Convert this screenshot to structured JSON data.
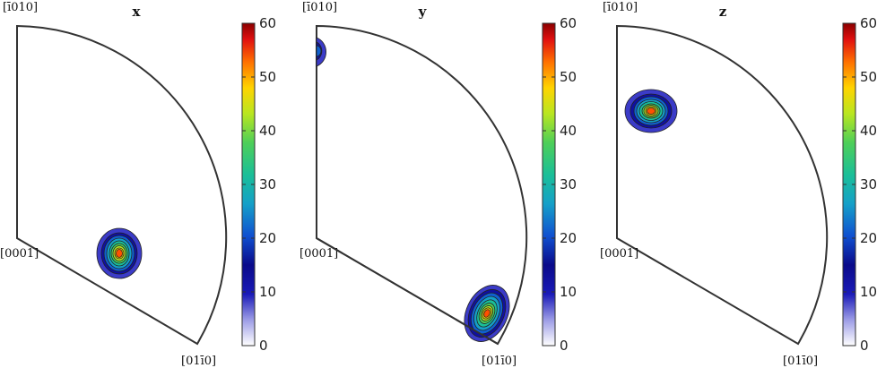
{
  "figure": {
    "panels": [
      {
        "title": "x",
        "corner_labels": {
          "top": "[ī010]",
          "left": "[0001]",
          "bottom": "[01ī0]"
        }
      },
      {
        "title": "y",
        "corner_labels": {
          "top": "[ī010]",
          "left": "[0001]",
          "bottom": "[01ī0]"
        }
      },
      {
        "title": "z",
        "corner_labels": {
          "top": "[ī010]",
          "left": "[0001]",
          "bottom": "[01ī0]"
        }
      }
    ],
    "colorbar": {
      "ticks": [
        "0",
        "10",
        "20",
        "30",
        "40",
        "50",
        "60"
      ],
      "colormap": [
        "#ffffff",
        "#9c9ce6",
        "#1a1ab8",
        "#0a0a8a",
        "#1050d0",
        "#15a0c8",
        "#1abf98",
        "#4ecf58",
        "#b9e620",
        "#ffd400",
        "#ff7000",
        "#e01010",
        "#8a0000"
      ]
    }
  },
  "chart_data": {
    "type": "heatmap",
    "description_kind": "inverse pole figure density contours",
    "colorbar_range": [
      0,
      60
    ],
    "panels": [
      {
        "title": "x",
        "peak_value": 60,
        "peak_position": "center-bottom region"
      },
      {
        "title": "y",
        "peak_value": 60,
        "peak_position": "bottom edge near [01ī0]",
        "secondary": "top-left corner near [ī010]"
      },
      {
        "title": "z",
        "peak_value": 60,
        "peak_position": "upper-left region"
      }
    ]
  }
}
